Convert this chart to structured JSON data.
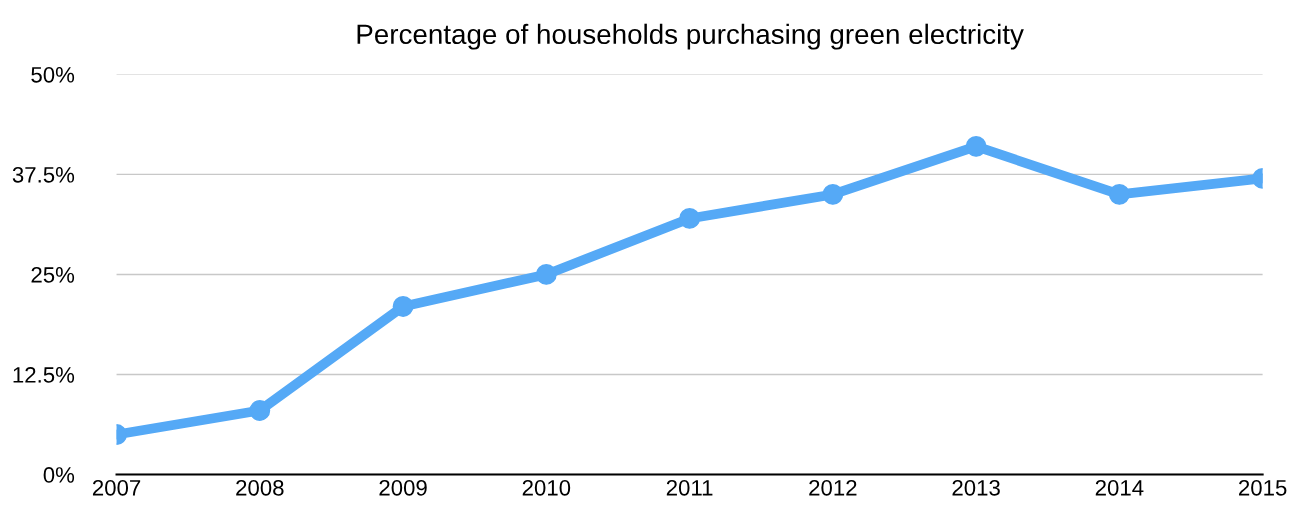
{
  "chart_data": {
    "type": "line",
    "title": "Percentage of households purchasing green electricity",
    "categories": [
      "2007",
      "2008",
      "2009",
      "2010",
      "2011",
      "2012",
      "2013",
      "2014",
      "2015"
    ],
    "series": [
      {
        "color": "#55a9f6",
        "values": [
          5,
          8,
          21,
          25,
          32,
          35,
          41,
          35,
          37
        ]
      }
    ],
    "ylim": [
      0,
      50
    ],
    "yticks": [
      {
        "value": 0,
        "label": "0%"
      },
      {
        "value": 12.5,
        "label": "12.5%"
      },
      {
        "value": 25,
        "label": "25%"
      },
      {
        "value": 37.5,
        "label": "37.5%"
      },
      {
        "value": 50,
        "label": "50%"
      }
    ],
    "grid": "y",
    "marker": "circle",
    "line_style": "solid"
  }
}
